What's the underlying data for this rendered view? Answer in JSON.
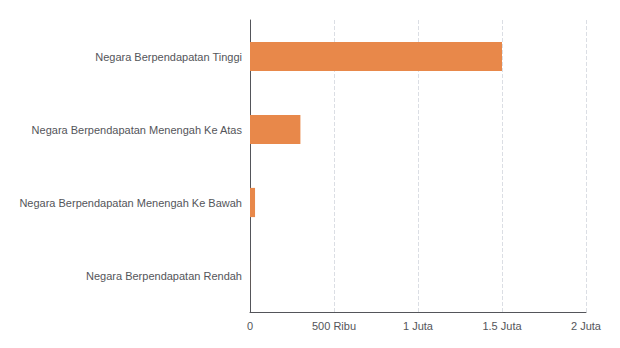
{
  "chart_data": {
    "type": "bar",
    "orientation": "horizontal",
    "categories": [
      "Negara Berpendapatan Tinggi",
      "Negara Berpendapatan Menengah Ke Atas",
      "Negara Berpendapatan Menengah Ke Bawah",
      "Negara Berpendapatan Rendah"
    ],
    "values": [
      1500000,
      300000,
      30000,
      500
    ],
    "color": "#e8884a",
    "xlim": [
      0,
      2000000
    ],
    "xticks": [
      0,
      {
        "value": 500000,
        "label": "500 Ribu"
      },
      {
        "value": 1000000,
        "label": "1 Juta"
      },
      {
        "value": 1500000,
        "label": "1.5 Juta"
      },
      {
        "value": 2000000,
        "label": "2 Juta"
      }
    ],
    "grid": true
  }
}
